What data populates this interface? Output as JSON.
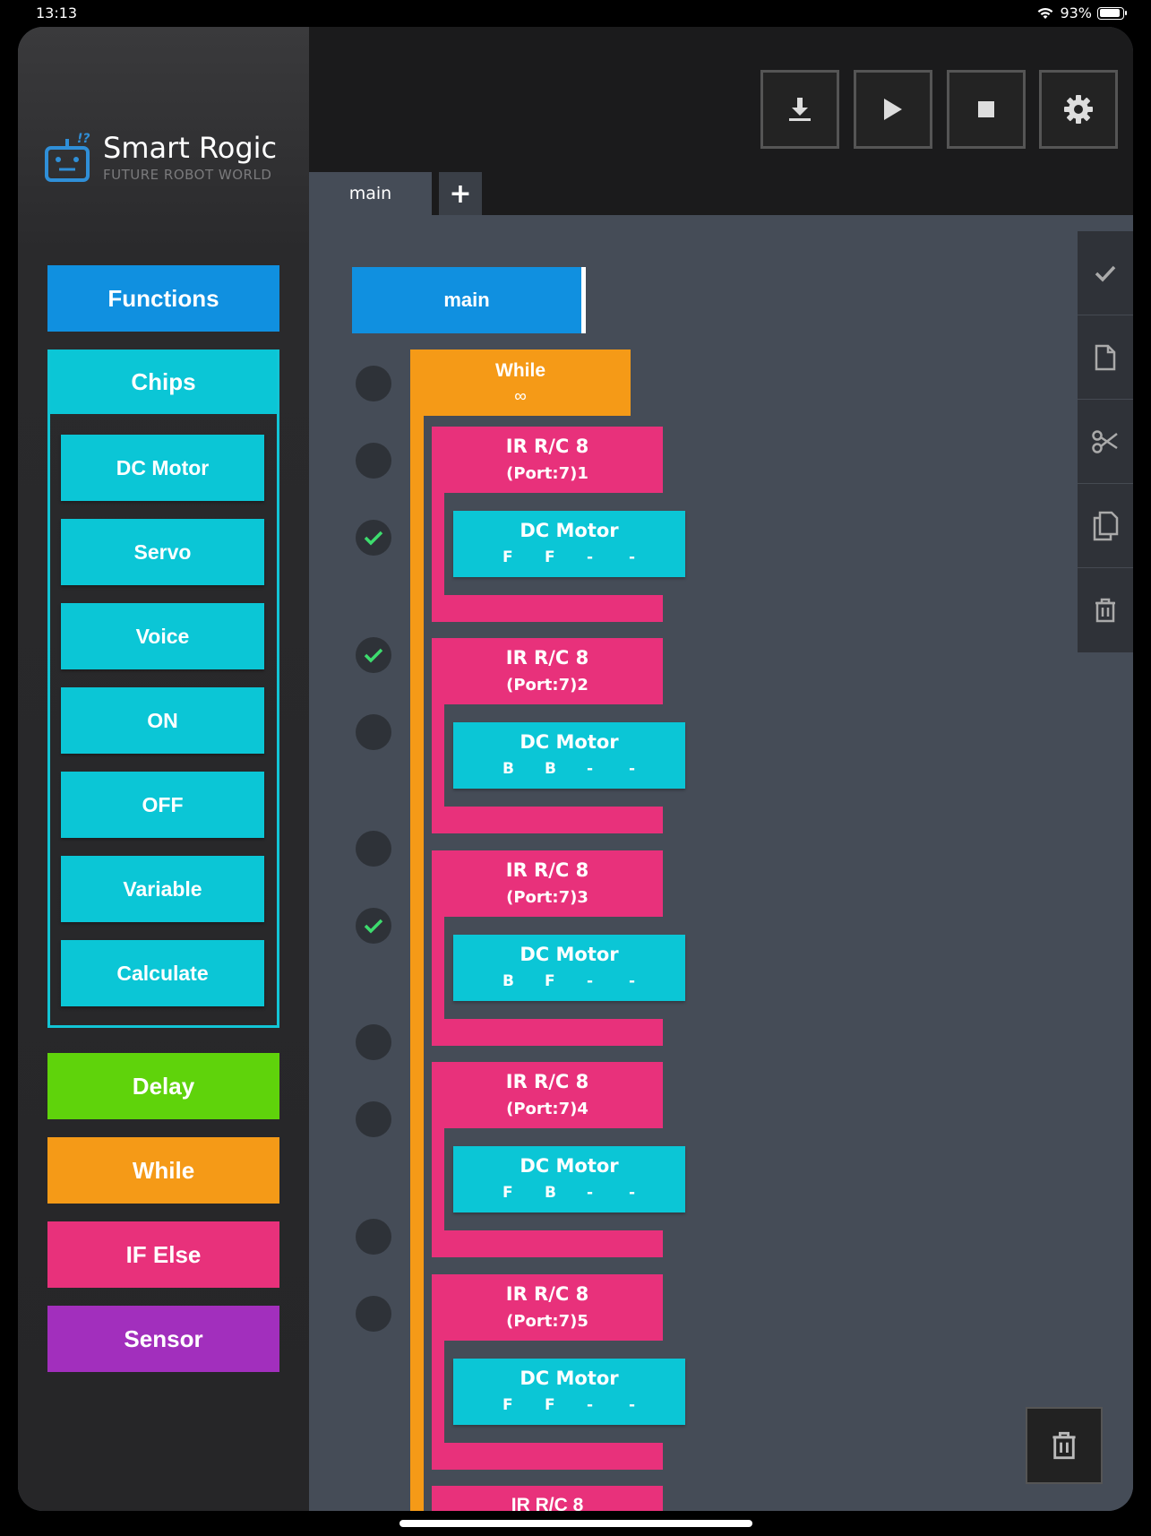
{
  "status": {
    "time": "13:13",
    "battery": "93%"
  },
  "logo": {
    "title": "Smart Rogic",
    "subtitle": "FUTURE ROBOT WORLD"
  },
  "sidebar": {
    "functions": "Functions",
    "chips": "Chips",
    "chip_items": [
      "DC Motor",
      "Servo",
      "Voice",
      "ON",
      "OFF",
      "Variable",
      "Calculate"
    ],
    "delay": "Delay",
    "while": "While",
    "if_else": "IF Else",
    "sensor": "Sensor"
  },
  "tabs": {
    "main": "main",
    "add": "+"
  },
  "canvas": {
    "main_block": "main",
    "while_block": {
      "label": "While",
      "value": "∞"
    },
    "groups": [
      {
        "ir_title": "IR R/C 8",
        "ir_sub": "(Port:7)1",
        "dc_title": "DC Motor",
        "params": [
          "F",
          "F",
          "-",
          "-"
        ]
      },
      {
        "ir_title": "IR R/C 8",
        "ir_sub": "(Port:7)2",
        "dc_title": "DC Motor",
        "params": [
          "B",
          "B",
          "-",
          "-"
        ]
      },
      {
        "ir_title": "IR R/C 8",
        "ir_sub": "(Port:7)3",
        "dc_title": "DC Motor",
        "params": [
          "B",
          "F",
          "-",
          "-"
        ]
      },
      {
        "ir_title": "IR R/C 8",
        "ir_sub": "(Port:7)4",
        "dc_title": "DC Motor",
        "params": [
          "F",
          "B",
          "-",
          "-"
        ]
      },
      {
        "ir_title": "IR R/C 8",
        "ir_sub": "(Port:7)5",
        "dc_title": "DC Motor",
        "params": [
          "F",
          "F",
          "-",
          "-"
        ]
      }
    ],
    "partial_block": "IR R/C 8"
  },
  "colors": {
    "functions": "#1090e0",
    "chips": "#0bc6d6",
    "delay": "#5fd30b",
    "while": "#f59a17",
    "if_else": "#e8317b",
    "sensor": "#a22fbd"
  }
}
